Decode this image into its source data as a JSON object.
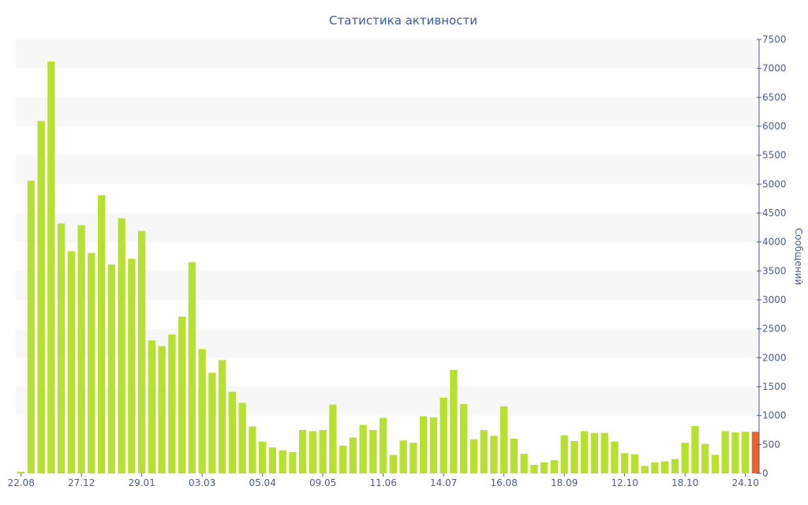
{
  "colors": {
    "bar": "#b8e030",
    "highlight": "#e8642c",
    "band": "#f7f7f7",
    "axis": "#4a5e8f",
    "text": "#4a5e8f",
    "title": "#3d5a99"
  },
  "chart_data": {
    "type": "bar",
    "title": "Статистика активности",
    "xlabel": "",
    "ylabel": "Сообщений",
    "y_axis_position": "right",
    "ylim": [
      0,
      7500
    ],
    "ytick_step": 500,
    "grid": "alternating horizontal bands",
    "legend": "none",
    "x_tick_labels": [
      {
        "index": 0,
        "label": "22.08"
      },
      {
        "index": 6,
        "label": "27.12"
      },
      {
        "index": 12,
        "label": "29.01"
      },
      {
        "index": 18,
        "label": "03.03"
      },
      {
        "index": 24,
        "label": "05.04"
      },
      {
        "index": 30,
        "label": "09.05"
      },
      {
        "index": 36,
        "label": "11.06"
      },
      {
        "index": 42,
        "label": "14.07"
      },
      {
        "index": 48,
        "label": "16.08"
      },
      {
        "index": 54,
        "label": "18.09"
      },
      {
        "index": 60,
        "label": "12.10"
      },
      {
        "index": 66,
        "label": "18.10"
      },
      {
        "index": 72,
        "label": "24.10"
      }
    ],
    "values": [
      30,
      5060,
      6090,
      7120,
      4320,
      3840,
      4290,
      3810,
      4810,
      3610,
      4410,
      3710,
      4190,
      2300,
      2200,
      2400,
      2710,
      3650,
      2150,
      1740,
      1960,
      1410,
      1220,
      810,
      550,
      450,
      400,
      370,
      750,
      730,
      750,
      1190,
      480,
      620,
      840,
      750,
      960,
      320,
      570,
      530,
      990,
      970,
      1310,
      1790,
      1200,
      590,
      750,
      650,
      1160,
      600,
      340,
      150,
      190,
      230,
      660,
      560,
      730,
      700,
      700,
      550,
      350,
      330,
      130,
      190,
      210,
      250,
      530,
      820,
      510,
      320,
      730,
      710,
      720,
      720
    ],
    "highlight_index": 73
  }
}
